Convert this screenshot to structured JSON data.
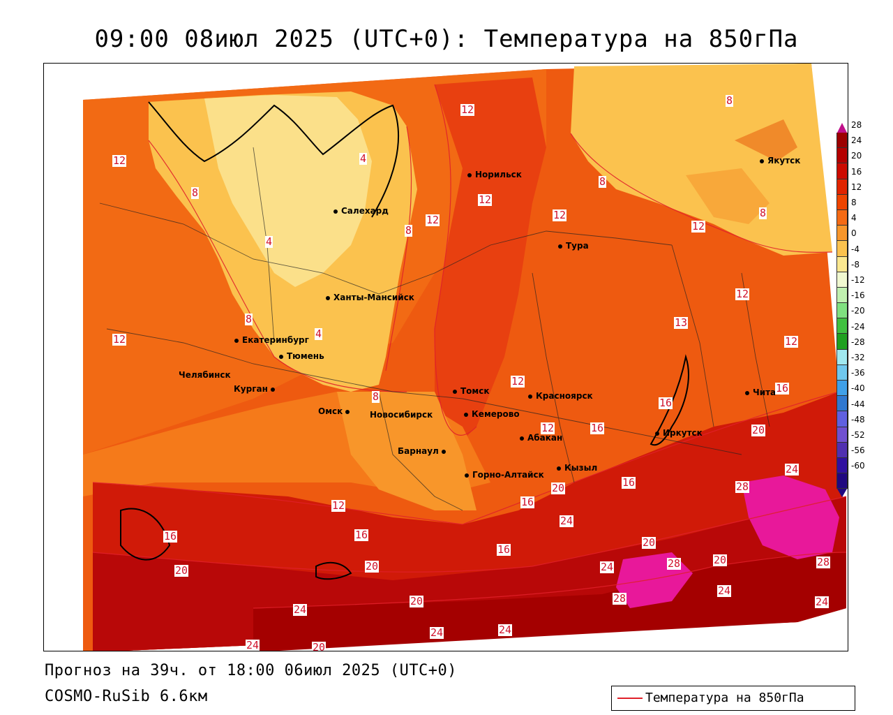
{
  "header": {
    "title": "09:00 08июл 2025 (UTC+0): Температура на 850гПа"
  },
  "footer": {
    "forecast": "Прогноз на 39ч. от 18:00 06июл 2025 (UTC+0)",
    "model": "COSMO-RuSib 6.6км"
  },
  "legend": {
    "label": "Температура на 850гПа",
    "line_color": "#e0202a"
  },
  "scale": {
    "labels": [
      "28",
      "24",
      "20",
      "16",
      "12",
      "8",
      "4",
      "0",
      "-4",
      "-8",
      "-12",
      "-16",
      "-20",
      "-24",
      "-28",
      "-32",
      "-36",
      "-40",
      "-44",
      "-48",
      "-52",
      "-56",
      "-60"
    ],
    "colors": [
      "#9c0000",
      "#b40000",
      "#cc0a00",
      "#e02400",
      "#ee4400",
      "#f46a14",
      "#f8962a",
      "#fbc24e",
      "#fbe890",
      "#f0f8d0",
      "#c0f0b0",
      "#80e080",
      "#40c040",
      "#20a020",
      "#a0e8f0",
      "#70c8ee",
      "#40a0e8",
      "#3078d0",
      "#6060e0",
      "#7050d0",
      "#5030b0",
      "#3010a0",
      "#200880"
    ]
  },
  "cities": [
    {
      "name": "Норильск"
    },
    {
      "name": "Салехард"
    },
    {
      "name": "Якутск"
    },
    {
      "name": "Тура"
    },
    {
      "name": "Ханты-Мансийск"
    },
    {
      "name": "Екатеринбург"
    },
    {
      "name": "Тюмень"
    },
    {
      "name": "Челябинск"
    },
    {
      "name": "Курган"
    },
    {
      "name": "Омск"
    },
    {
      "name": "Новосибирск"
    },
    {
      "name": "Томск"
    },
    {
      "name": "Кемерово"
    },
    {
      "name": "Красноярск"
    },
    {
      "name": "Абакан"
    },
    {
      "name": "Барнаул"
    },
    {
      "name": "Горно-Алтайск"
    },
    {
      "name": "Кызыл"
    },
    {
      "name": "Иркутск"
    },
    {
      "name": "Чита"
    }
  ],
  "isotherm_labels": [
    "12",
    "8",
    "12",
    "8",
    "4",
    "12",
    "8",
    "12",
    "8",
    "4",
    "8",
    "12",
    "12",
    "8",
    "4",
    "12",
    "12",
    "8",
    "12",
    "16",
    "12",
    "13",
    "12",
    "16",
    "16",
    "20",
    "20",
    "24",
    "16",
    "16",
    "16",
    "24",
    "28",
    "20",
    "20",
    "28",
    "20",
    "20",
    "24",
    "28",
    "24",
    "24",
    "24",
    "28",
    "24",
    "24",
    "20",
    "24",
    "20",
    "12",
    "16",
    "16"
  ]
}
